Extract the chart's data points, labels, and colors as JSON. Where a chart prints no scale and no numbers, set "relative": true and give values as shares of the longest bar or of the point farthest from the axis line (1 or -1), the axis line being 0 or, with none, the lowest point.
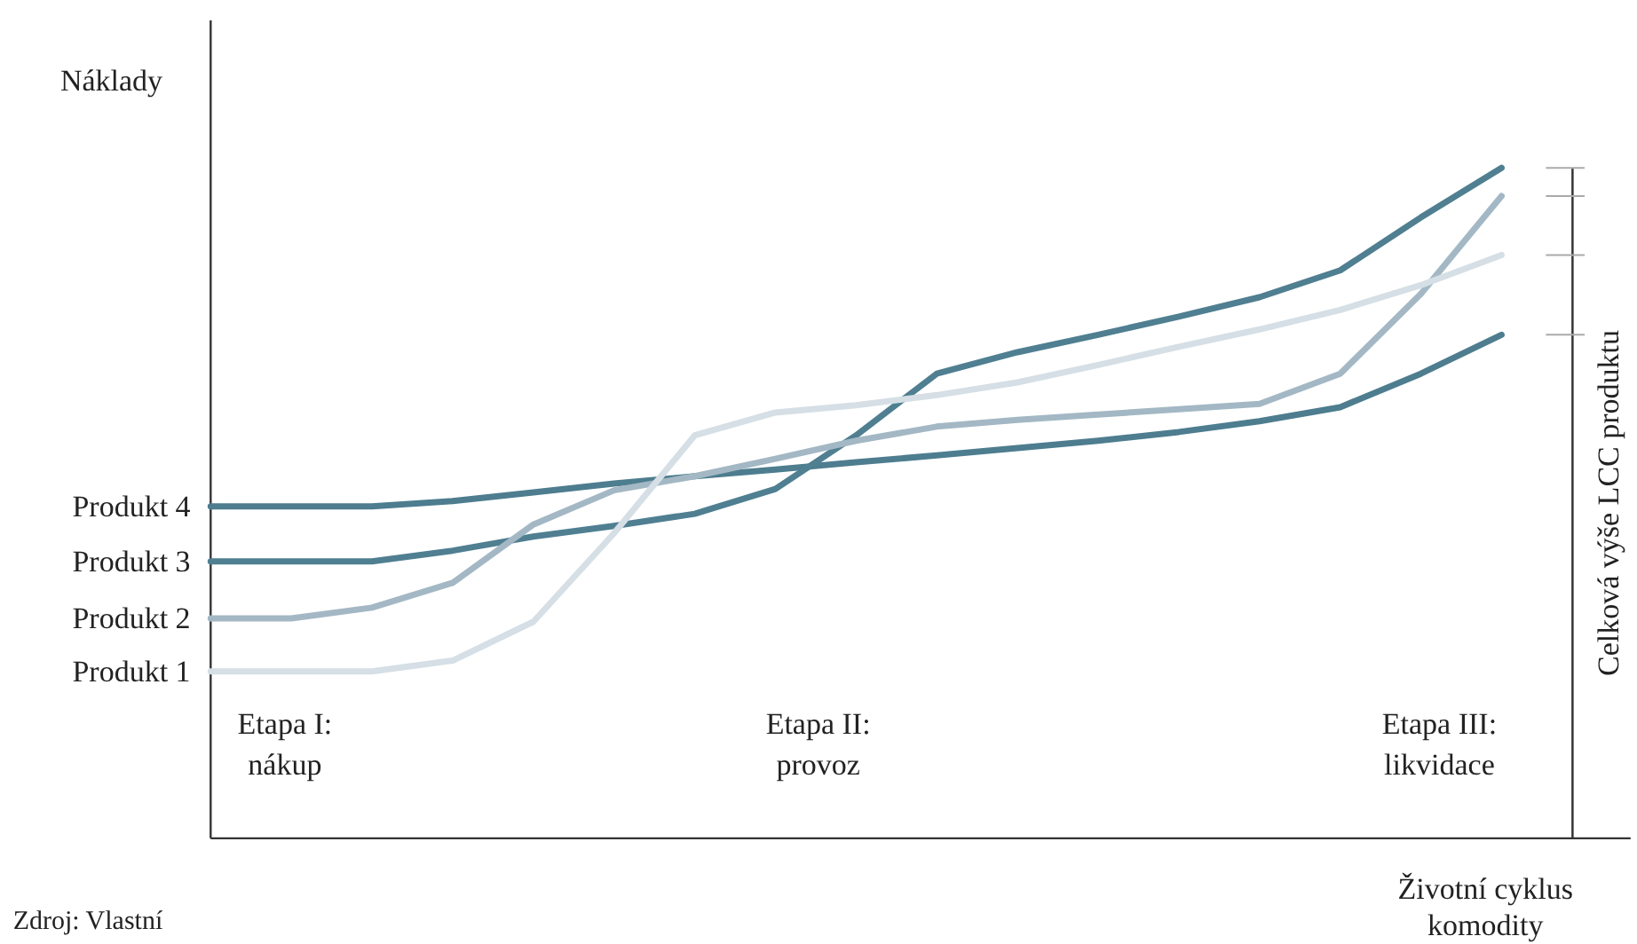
{
  "chart_data": {
    "type": "line",
    "relative": true,
    "ylabel": "Náklady",
    "xlabel": "Životní cyklus\nkomodity",
    "y2label": "Celková výše LCC produktu",
    "categories": [
      null,
      null,
      null,
      null,
      null,
      null,
      null,
      null,
      null,
      null,
      null,
      null,
      null,
      null,
      null,
      null,
      null
    ],
    "series": [
      {
        "name": "Produkt 4",
        "color": "#4d7d8f",
        "values": [
          0.495,
          0.495,
          0.495,
          0.503,
          0.516,
          0.529,
          0.54,
          0.55,
          0.561,
          0.571,
          0.582,
          0.593,
          0.606,
          0.622,
          0.643,
          0.693,
          0.751
        ]
      },
      {
        "name": "Produkt 3",
        "color": "#4f7f91",
        "values": [
          0.413,
          0.413,
          0.413,
          0.429,
          0.45,
          0.466,
          0.484,
          0.521,
          0.601,
          0.693,
          0.725,
          0.751,
          0.778,
          0.807,
          0.847,
          0.926,
          1.0
        ]
      },
      {
        "name": "Produkt 2",
        "color": "#a3b8c4",
        "values": [
          0.328,
          0.328,
          0.344,
          0.381,
          0.468,
          0.519,
          0.54,
          0.566,
          0.593,
          0.614,
          0.624,
          0.632,
          0.64,
          0.648,
          0.693,
          0.812,
          0.958
        ]
      },
      {
        "name": "Produkt 1",
        "color": "#d5dfe5",
        "values": [
          0.249,
          0.249,
          0.249,
          0.265,
          0.323,
          0.455,
          0.601,
          0.635,
          0.646,
          0.661,
          0.68,
          0.706,
          0.733,
          0.759,
          0.788,
          0.825,
          0.87
        ]
      }
    ],
    "annotations": [
      "Etapa I:\nnákup",
      "Etapa II:\nprovoz",
      "Etapa III:\nlikvidace",
      "Zdroj: Vlastní"
    ],
    "legend": false,
    "grid": false
  }
}
